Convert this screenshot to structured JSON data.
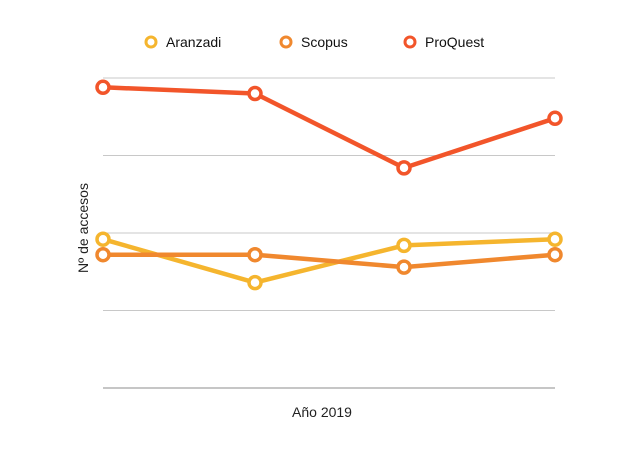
{
  "chart_data": {
    "type": "line",
    "title": "",
    "xlabel": "Año 2019",
    "ylabel": "Nº de accesos",
    "categories": [
      "",
      "",
      "",
      ""
    ],
    "ylim": [
      0,
      1
    ],
    "grid": true,
    "legend_position": "top",
    "series": [
      {
        "name": "Aranzadi",
        "color": "#F5B52E",
        "values": [
          0.48,
          0.34,
          0.46,
          0.48
        ]
      },
      {
        "name": "Scopus",
        "color": "#F0882E",
        "values": [
          0.43,
          0.43,
          0.39,
          0.43
        ]
      },
      {
        "name": "ProQuest",
        "color": "#F2552A",
        "values": [
          0.97,
          0.95,
          0.71,
          0.87
        ]
      }
    ]
  }
}
